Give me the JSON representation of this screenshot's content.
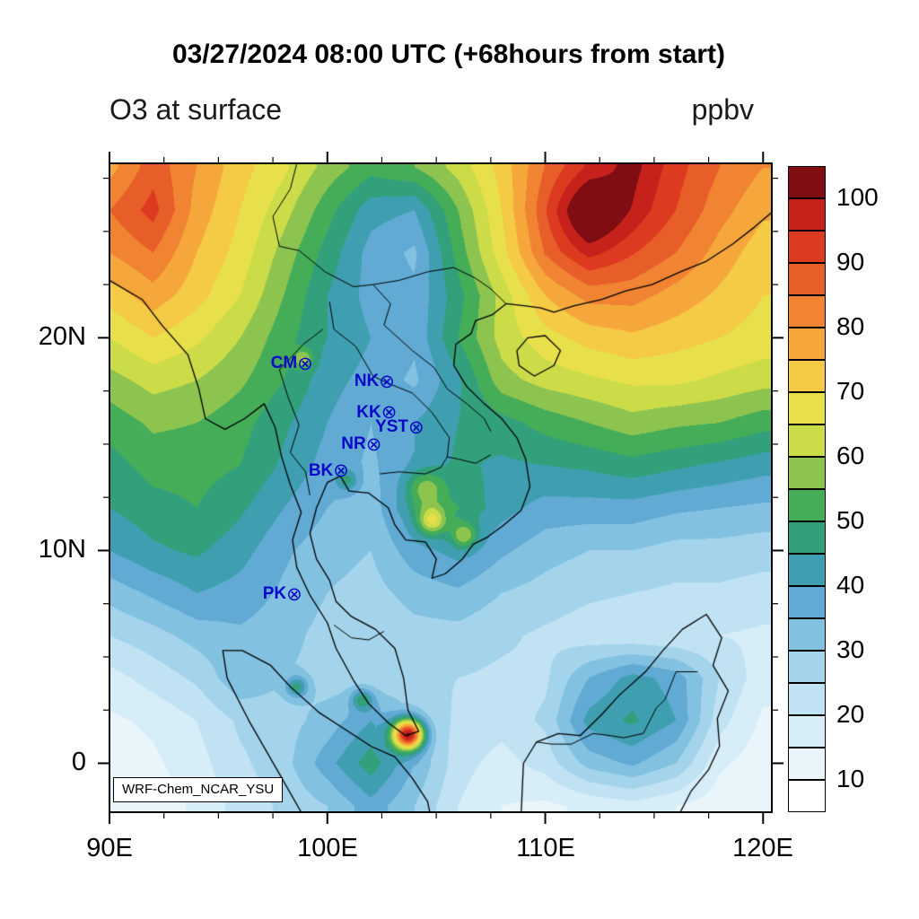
{
  "header": {
    "title": "03/27/2024 08:00 UTC (+68hours from start)",
    "subtitle_left": "O3 at surface",
    "units_label": "ppbv"
  },
  "axes": {
    "x_ticks": [
      {
        "label": "90E",
        "lon": 90
      },
      {
        "label": "100E",
        "lon": 100
      },
      {
        "label": "110E",
        "lon": 110
      },
      {
        "label": "120E",
        "lon": 120
      }
    ],
    "y_ticks": [
      {
        "label": "20N",
        "lat": 20
      },
      {
        "label": "10N",
        "lat": 10
      },
      {
        "label": "0",
        "lat": 0
      }
    ],
    "minor_tick_deg": 2.5
  },
  "colorbar": {
    "tick_labels": [
      "10",
      "20",
      "30",
      "40",
      "50",
      "60",
      "70",
      "80",
      "90",
      "100"
    ]
  },
  "map": {
    "watermark": "WRF-Chem_NCAR_YSU"
  },
  "chart_data": {
    "type": "heatmap",
    "title": "03/27/2024 08:00 UTC (+68hours from start)",
    "variable": "O3 at surface",
    "units": "ppbv",
    "legend_position": "right",
    "grid_lines": false,
    "extent": {
      "lon_min": 90,
      "lon_max": 120.4,
      "lat_min": -2.3,
      "lat_max": 28.2
    },
    "levels": [
      10,
      15,
      20,
      25,
      30,
      35,
      40,
      45,
      50,
      55,
      60,
      65,
      70,
      75,
      80,
      85,
      90,
      95,
      100
    ],
    "colors": [
      "#ffffff",
      "#e9f5fb",
      "#d7edf8",
      "#c0e2f3",
      "#a4d4ec",
      "#83c1e1",
      "#60aad3",
      "#3f9fb0",
      "#33a07c",
      "#45ad58",
      "#8dc44f",
      "#ccdc49",
      "#e8e04a",
      "#f5ca45",
      "#f5a73c",
      "#f08432",
      "#e85e29",
      "#dc3b20",
      "#c6221b",
      "#7f0d11"
    ],
    "station_color": "#0808c8",
    "station_marker_glyph": "⊗",
    "stations": [
      {
        "label": "CM",
        "lon": 98.85,
        "lat": 18.75
      },
      {
        "label": "NK",
        "lon": 102.6,
        "lat": 17.9
      },
      {
        "label": "KK",
        "lon": 102.7,
        "lat": 16.45
      },
      {
        "label": "YST",
        "lon": 103.95,
        "lat": 15.75
      },
      {
        "label": "NR",
        "lon": 102.0,
        "lat": 14.95
      },
      {
        "label": "BK",
        "lon": 100.5,
        "lat": 13.7
      },
      {
        "label": "PK",
        "lon": 98.35,
        "lat": 7.9
      }
    ],
    "grid": {
      "lons": [
        90,
        92,
        94,
        96,
        98,
        100,
        102,
        104,
        106,
        108,
        110,
        112,
        114,
        116,
        118,
        120
      ],
      "lats": [
        28,
        26,
        24,
        22,
        20,
        18,
        16,
        14,
        12,
        10,
        8,
        6,
        4,
        2,
        0,
        -2
      ],
      "values": [
        [
          78,
          88,
          80,
          72,
          66,
          58,
          52,
          55,
          62,
          72,
          85,
          95,
          102,
          92,
          85,
          80
        ],
        [
          85,
          92,
          78,
          70,
          62,
          52,
          42,
          40,
          55,
          70,
          88,
          104,
          98,
          90,
          82,
          76
        ],
        [
          80,
          85,
          75,
          68,
          58,
          48,
          38,
          34,
          52,
          68,
          85,
          95,
          90,
          85,
          78,
          72
        ],
        [
          72,
          78,
          72,
          65,
          55,
          45,
          38,
          36,
          48,
          62,
          75,
          82,
          82,
          78,
          74,
          70
        ],
        [
          65,
          70,
          66,
          60,
          52,
          45,
          40,
          36,
          50,
          62,
          68,
          72,
          74,
          72,
          70,
          68
        ],
        [
          58,
          62,
          60,
          56,
          50,
          42,
          38,
          34,
          44,
          58,
          62,
          64,
          66,
          66,
          64,
          62
        ],
        [
          52,
          56,
          55,
          52,
          46,
          40,
          35,
          40,
          45,
          48,
          52,
          55,
          58,
          56,
          55,
          52
        ],
        [
          48,
          52,
          52,
          50,
          44,
          38,
          34,
          40,
          46,
          44,
          45,
          46,
          48,
          46,
          44,
          42
        ],
        [
          45,
          48,
          50,
          46,
          40,
          35,
          32,
          45,
          50,
          42,
          38,
          38,
          38,
          36,
          35,
          34
        ],
        [
          40,
          44,
          46,
          42,
          36,
          32,
          30,
          38,
          42,
          36,
          32,
          30,
          30,
          28,
          28,
          27
        ],
        [
          32,
          36,
          40,
          38,
          34,
          30,
          28,
          32,
          34,
          30,
          28,
          26,
          25,
          24,
          24,
          23
        ],
        [
          25,
          28,
          32,
          34,
          32,
          28,
          26,
          28,
          28,
          26,
          24,
          22,
          21,
          20,
          20,
          19
        ],
        [
          18,
          22,
          26,
          34,
          30,
          28,
          26,
          26,
          25,
          24,
          24,
          35,
          42,
          38,
          25,
          17
        ],
        [
          14,
          16,
          20,
          26,
          28,
          32,
          40,
          30,
          24,
          22,
          26,
          42,
          46,
          40,
          22,
          14
        ],
        [
          12,
          14,
          18,
          24,
          28,
          38,
          48,
          35,
          22,
          18,
          22,
          32,
          36,
          30,
          16,
          12
        ],
        [
          10,
          12,
          16,
          22,
          26,
          30,
          38,
          30,
          20,
          15,
          14,
          16,
          18,
          15,
          12,
          10
        ]
      ]
    },
    "hotspots": [
      {
        "lon": 103.72,
        "lat": 1.35,
        "amp": 68,
        "sigma": 0.5
      },
      {
        "lon": 104.8,
        "lat": 11.4,
        "amp": 22,
        "sigma": 0.45
      },
      {
        "lon": 106.3,
        "lat": 10.7,
        "amp": 16,
        "sigma": 0.4
      },
      {
        "lon": 104.5,
        "lat": 12.9,
        "amp": 14,
        "sigma": 0.6
      },
      {
        "lon": 100.9,
        "lat": 13.3,
        "amp": 12,
        "sigma": 0.35
      },
      {
        "lon": 98.9,
        "lat": 19.0,
        "amp": 13,
        "sigma": 0.3
      },
      {
        "lon": 101.6,
        "lat": 3.0,
        "amp": 17,
        "sigma": 0.35
      },
      {
        "lon": 98.6,
        "lat": 3.6,
        "amp": 18,
        "sigma": 0.35
      },
      {
        "lon": 112.0,
        "lat": 25.8,
        "amp": 6,
        "sigma": 1.2
      }
    ],
    "coastlines": [
      [
        [
          90.0,
          22.7
        ],
        [
          91.5,
          21.8
        ],
        [
          92.4,
          20.6
        ],
        [
          93.6,
          19.2
        ],
        [
          94.1,
          17.6
        ],
        [
          94.4,
          16.2
        ],
        [
          95.3,
          15.7
        ],
        [
          96.2,
          16.2
        ],
        [
          97.1,
          16.9
        ],
        [
          97.6,
          15.8
        ],
        [
          97.9,
          14.4
        ],
        [
          98.3,
          13.1
        ],
        [
          98.8,
          11.8
        ],
        [
          98.4,
          10.5
        ],
        [
          98.6,
          9.2
        ],
        [
          99.2,
          7.9
        ],
        [
          100.0,
          6.6
        ],
        [
          100.4,
          5.4
        ],
        [
          101.2,
          3.9
        ],
        [
          101.9,
          2.8
        ],
        [
          102.8,
          1.9
        ],
        [
          103.6,
          1.3
        ],
        [
          104.2,
          1.5
        ],
        [
          103.7,
          2.5
        ],
        [
          103.5,
          4.0
        ],
        [
          103.1,
          5.4
        ],
        [
          102.2,
          6.3
        ],
        [
          101.1,
          6.9
        ],
        [
          100.4,
          7.6
        ],
        [
          100.1,
          8.6
        ],
        [
          99.5,
          9.6
        ],
        [
          99.2,
          10.8
        ],
        [
          99.5,
          12.0
        ],
        [
          100.0,
          13.2
        ],
        [
          100.6,
          13.5
        ],
        [
          101.0,
          12.8
        ],
        [
          101.9,
          12.7
        ],
        [
          102.8,
          12.0
        ],
        [
          103.1,
          11.2
        ],
        [
          103.6,
          10.5
        ],
        [
          104.5,
          10.4
        ],
        [
          105.0,
          9.6
        ],
        [
          104.8,
          8.7
        ],
        [
          105.4,
          8.9
        ],
        [
          106.2,
          9.6
        ],
        [
          106.7,
          10.3
        ],
        [
          107.3,
          10.6
        ],
        [
          108.1,
          11.2
        ],
        [
          108.9,
          11.9
        ],
        [
          109.3,
          13.0
        ],
        [
          109.1,
          14.3
        ],
        [
          108.7,
          15.3
        ],
        [
          108.0,
          16.2
        ],
        [
          107.2,
          16.9
        ],
        [
          106.4,
          17.7
        ],
        [
          105.8,
          18.7
        ],
        [
          105.9,
          19.7
        ],
        [
          106.6,
          20.2
        ],
        [
          106.8,
          20.8
        ],
        [
          107.6,
          21.1
        ],
        [
          108.2,
          21.6
        ],
        [
          109.1,
          21.5
        ],
        [
          109.8,
          21.4
        ],
        [
          110.4,
          21.2
        ],
        [
          111.3,
          21.5
        ],
        [
          112.6,
          21.8
        ],
        [
          113.7,
          22.2
        ],
        [
          114.9,
          22.5
        ],
        [
          116.2,
          23.1
        ],
        [
          117.4,
          23.6
        ],
        [
          118.6,
          24.4
        ],
        [
          119.6,
          25.2
        ],
        [
          120.4,
          25.9
        ]
      ],
      [
        [
          98.8,
          -2.3
        ],
        [
          97.8,
          -0.5
        ],
        [
          96.4,
          2.0
        ],
        [
          95.4,
          4.0
        ],
        [
          95.2,
          5.3
        ],
        [
          96.1,
          5.3
        ],
        [
          97.4,
          4.6
        ],
        [
          98.3,
          3.6
        ],
        [
          99.6,
          2.4
        ],
        [
          100.8,
          1.6
        ],
        [
          102.0,
          0.8
        ],
        [
          103.1,
          0.3
        ],
        [
          103.9,
          -0.7
        ],
        [
          104.6,
          -1.8
        ],
        [
          104.7,
          -2.3
        ]
      ],
      [
        [
          108.9,
          -2.3
        ],
        [
          109.0,
          0.0
        ],
        [
          109.6,
          1.0
        ],
        [
          110.6,
          1.4
        ],
        [
          111.6,
          1.3
        ],
        [
          112.6,
          2.3
        ],
        [
          113.4,
          3.2
        ],
        [
          114.6,
          4.3
        ],
        [
          115.4,
          5.3
        ],
        [
          116.3,
          6.3
        ],
        [
          117.4,
          7.0
        ],
        [
          118.1,
          5.9
        ],
        [
          117.7,
          4.6
        ],
        [
          118.4,
          3.4
        ],
        [
          117.9,
          2.1
        ],
        [
          118.0,
          0.8
        ],
        [
          117.5,
          -0.3
        ],
        [
          116.7,
          -1.3
        ],
        [
          116.2,
          -2.3
        ]
      ],
      [
        [
          108.7,
          19.4
        ],
        [
          109.2,
          20.0
        ],
        [
          110.0,
          20.1
        ],
        [
          110.7,
          19.4
        ],
        [
          110.4,
          18.7
        ],
        [
          109.5,
          18.2
        ],
        [
          108.8,
          18.7
        ],
        [
          108.7,
          19.4
        ]
      ]
    ],
    "borders": [
      [
        [
          97.8,
          24.3
        ],
        [
          98.7,
          24.1
        ],
        [
          99.9,
          23.1
        ],
        [
          101.2,
          22.4
        ],
        [
          102.1,
          22.5
        ],
        [
          103.3,
          22.7
        ],
        [
          104.6,
          23.1
        ],
        [
          105.8,
          23.3
        ],
        [
          106.8,
          22.8
        ],
        [
          107.5,
          22.3
        ],
        [
          108.2,
          21.6
        ]
      ],
      [
        [
          97.8,
          24.3
        ],
        [
          97.5,
          25.7
        ],
        [
          98.3,
          27.0
        ],
        [
          98.6,
          28.2
        ]
      ],
      [
        [
          100.1,
          21.7
        ],
        [
          100.3,
          20.4
        ],
        [
          101.3,
          19.6
        ],
        [
          102.1,
          18.2
        ],
        [
          102.7,
          17.9
        ],
        [
          103.9,
          17.4
        ],
        [
          104.8,
          16.5
        ],
        [
          105.6,
          15.3
        ],
        [
          105.5,
          14.4
        ],
        [
          106.0,
          14.3
        ],
        [
          106.8,
          14.1
        ],
        [
          107.5,
          14.5
        ]
      ],
      [
        [
          99.8,
          20.4
        ],
        [
          98.9,
          19.7
        ],
        [
          97.8,
          18.5
        ],
        [
          98.2,
          17.2
        ],
        [
          98.7,
          15.9
        ],
        [
          98.3,
          14.6
        ],
        [
          99.0,
          13.7
        ],
        [
          99.2,
          12.6
        ]
      ],
      [
        [
          102.1,
          22.5
        ],
        [
          102.9,
          21.6
        ],
        [
          102.6,
          20.6
        ],
        [
          103.9,
          19.4
        ],
        [
          104.9,
          18.6
        ],
        [
          105.5,
          17.6
        ],
        [
          106.4,
          16.9
        ],
        [
          107.2,
          16.2
        ],
        [
          107.5,
          15.6
        ]
      ],
      [
        [
          102.4,
          13.6
        ],
        [
          103.3,
          13.7
        ],
        [
          104.5,
          13.6
        ],
        [
          105.2,
          13.9
        ],
        [
          105.5,
          14.4
        ]
      ],
      [
        [
          100.3,
          6.5
        ],
        [
          101.1,
          5.9
        ],
        [
          101.9,
          5.8
        ],
        [
          102.6,
          6.2
        ]
      ],
      [
        [
          109.6,
          1.0
        ],
        [
          110.3,
          0.9
        ],
        [
          111.2,
          0.9
        ],
        [
          112.2,
          1.4
        ],
        [
          113.0,
          1.3
        ],
        [
          113.6,
          1.2
        ],
        [
          114.5,
          1.4
        ],
        [
          115.1,
          2.6
        ],
        [
          115.5,
          3.0
        ],
        [
          116.0,
          4.3
        ],
        [
          117.0,
          4.3
        ]
      ]
    ]
  }
}
